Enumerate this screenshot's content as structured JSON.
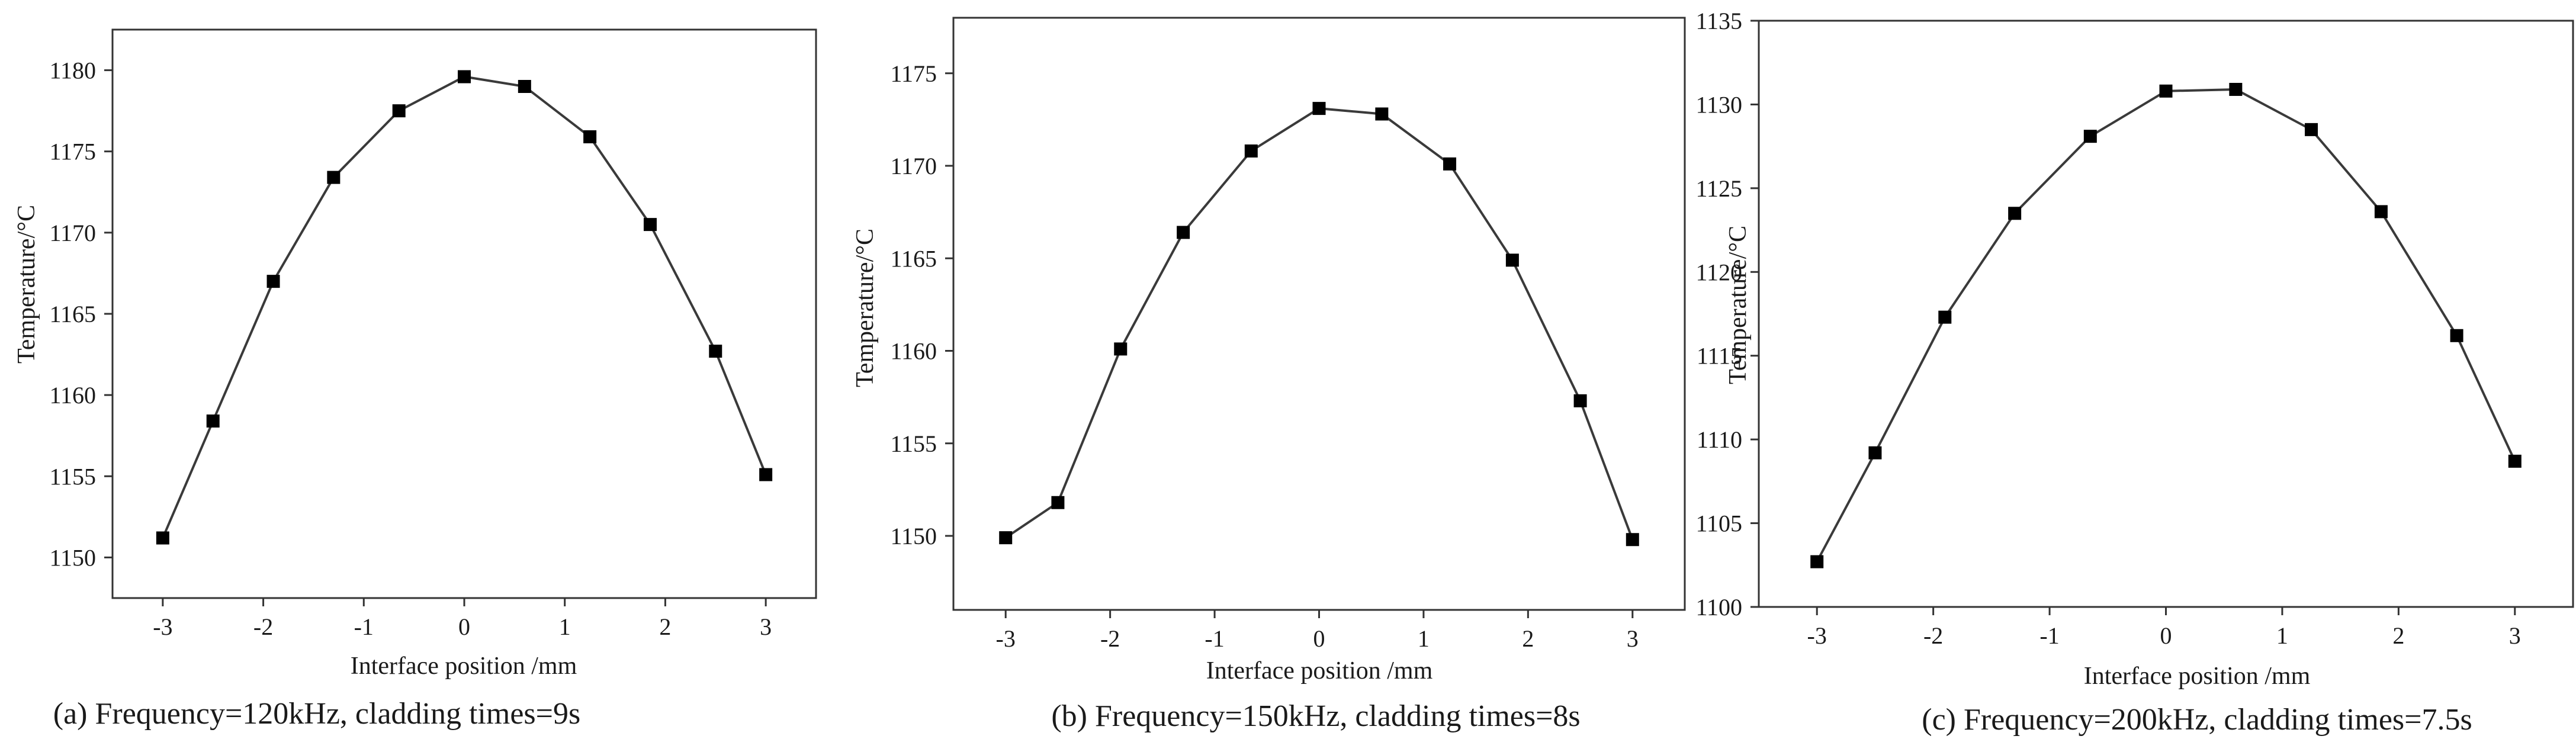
{
  "charts": [
    {
      "id": "a",
      "type": "line",
      "caption": "(a)  Frequency=120kHz, cladding times=9s",
      "xlabel": "Interface position /mm",
      "ylabel": "Temperature/°C",
      "x": [
        -3,
        -2.5,
        -1.9,
        -1.3,
        -0.65,
        0,
        0.6,
        1.25,
        1.85,
        2.5,
        3
      ],
      "y": [
        1151.2,
        1158.4,
        1167.0,
        1173.4,
        1177.5,
        1179.6,
        1179.0,
        1175.9,
        1170.5,
        1162.7,
        1155.1
      ],
      "xlim": [
        -3.5,
        3.5
      ],
      "ylim": [
        1147.5,
        1182.5
      ],
      "xticks": [
        -3,
        -2,
        -1,
        0,
        1,
        2,
        3
      ],
      "yticks": [
        1150,
        1155,
        1160,
        1165,
        1170,
        1175,
        1180
      ],
      "xtick_labels": [
        "-3",
        "-2",
        "-1",
        "0",
        "1",
        "2",
        "3"
      ],
      "ytick_labels": [
        "1150",
        "1155",
        "1160",
        "1165",
        "1170",
        "1175",
        "1180"
      ]
    },
    {
      "id": "b",
      "type": "line",
      "caption": "(b)  Frequency=150kHz, cladding times=8s",
      "xlabel": "Interface position /mm",
      "ylabel": "Temperature/°C",
      "x": [
        -3,
        -2.5,
        -1.9,
        -1.3,
        -0.65,
        0,
        0.6,
        1.25,
        1.85,
        2.5,
        3
      ],
      "y": [
        1149.9,
        1151.8,
        1160.1,
        1166.4,
        1170.8,
        1173.1,
        1172.8,
        1170.1,
        1164.9,
        1157.3,
        1149.8
      ],
      "xlim": [
        -3.5,
        3.5
      ],
      "ylim": [
        1146.0,
        1178.0
      ],
      "xticks": [
        -3,
        -2,
        -1,
        0,
        1,
        2,
        3
      ],
      "yticks": [
        1150,
        1155,
        1160,
        1165,
        1170,
        1175
      ],
      "xtick_labels": [
        "-3",
        "-2",
        "-1",
        "0",
        "1",
        "2",
        "3"
      ],
      "ytick_labels": [
        "1150",
        "1155",
        "1160",
        "1165",
        "1170",
        "1175"
      ]
    },
    {
      "id": "c",
      "type": "line",
      "caption": "(c)  Frequency=200kHz, cladding times=7.5s",
      "xlabel": "Interface position /mm",
      "ylabel": "Temperature/°C",
      "x": [
        -3,
        -2.5,
        -1.9,
        -1.3,
        -0.65,
        0,
        0.6,
        1.25,
        1.85,
        2.5,
        3
      ],
      "y": [
        1102.7,
        1109.2,
        1117.3,
        1123.5,
        1128.1,
        1130.8,
        1130.9,
        1128.5,
        1123.6,
        1116.2,
        1108.7
      ],
      "xlim": [
        -3.5,
        3.5
      ],
      "ylim": [
        1100,
        1135
      ],
      "xticks": [
        -3,
        -2,
        -1,
        0,
        1,
        2,
        3
      ],
      "yticks": [
        1100,
        1105,
        1110,
        1115,
        1120,
        1125,
        1130,
        1135
      ],
      "xtick_labels": [
        "-3",
        "-2",
        "-1",
        "0",
        "1",
        "2",
        "3"
      ],
      "ytick_labels": [
        "1100",
        "1105",
        "1110",
        "1115",
        "1120",
        "1125",
        "1130",
        "1135"
      ]
    }
  ],
  "chart_data": [
    {
      "type": "line",
      "title": "(a)  Frequency=120kHz, cladding times=9s",
      "xlabel": "Interface position /mm",
      "ylabel": "Temperature/°C",
      "x": [
        -3,
        -2.5,
        -1.9,
        -1.3,
        -0.65,
        0,
        0.6,
        1.25,
        1.85,
        2.5,
        3
      ],
      "series": [
        {
          "name": "Temperature",
          "values": [
            1151.2,
            1158.4,
            1167.0,
            1173.4,
            1177.5,
            1179.6,
            1179.0,
            1175.9,
            1170.5,
            1162.7,
            1155.1
          ]
        }
      ],
      "xlim": [
        -3.5,
        3.5
      ],
      "ylim": [
        1147.5,
        1182.5
      ],
      "grid": false
    },
    {
      "type": "line",
      "title": "(b)  Frequency=150kHz, cladding times=8s",
      "xlabel": "Interface position /mm",
      "ylabel": "Temperature/°C",
      "x": [
        -3,
        -2.5,
        -1.9,
        -1.3,
        -0.65,
        0,
        0.6,
        1.25,
        1.85,
        2.5,
        3
      ],
      "series": [
        {
          "name": "Temperature",
          "values": [
            1149.9,
            1151.8,
            1160.1,
            1166.4,
            1170.8,
            1173.1,
            1172.8,
            1170.1,
            1164.9,
            1157.3,
            1149.8
          ]
        }
      ],
      "xlim": [
        -3.5,
        3.5
      ],
      "ylim": [
        1146.0,
        1178.0
      ],
      "grid": false
    },
    {
      "type": "line",
      "title": "(c)  Frequency=200kHz, cladding times=7.5s",
      "xlabel": "Interface position /mm",
      "ylabel": "Temperature/°C",
      "x": [
        -3,
        -2.5,
        -1.9,
        -1.3,
        -0.65,
        0,
        0.6,
        1.25,
        1.85,
        2.5,
        3
      ],
      "series": [
        {
          "name": "Temperature",
          "values": [
            1102.7,
            1109.2,
            1117.3,
            1123.5,
            1128.1,
            1130.8,
            1130.9,
            1128.5,
            1123.6,
            1116.2,
            1108.7
          ]
        }
      ],
      "xlim": [
        -3.5,
        3.5
      ],
      "ylim": [
        1100,
        1135
      ],
      "grid": false
    }
  ],
  "style": {
    "line_color": "#3a3a3a",
    "marker_color": "#000000",
    "axis_color": "#333333",
    "background": "#ffffff"
  }
}
